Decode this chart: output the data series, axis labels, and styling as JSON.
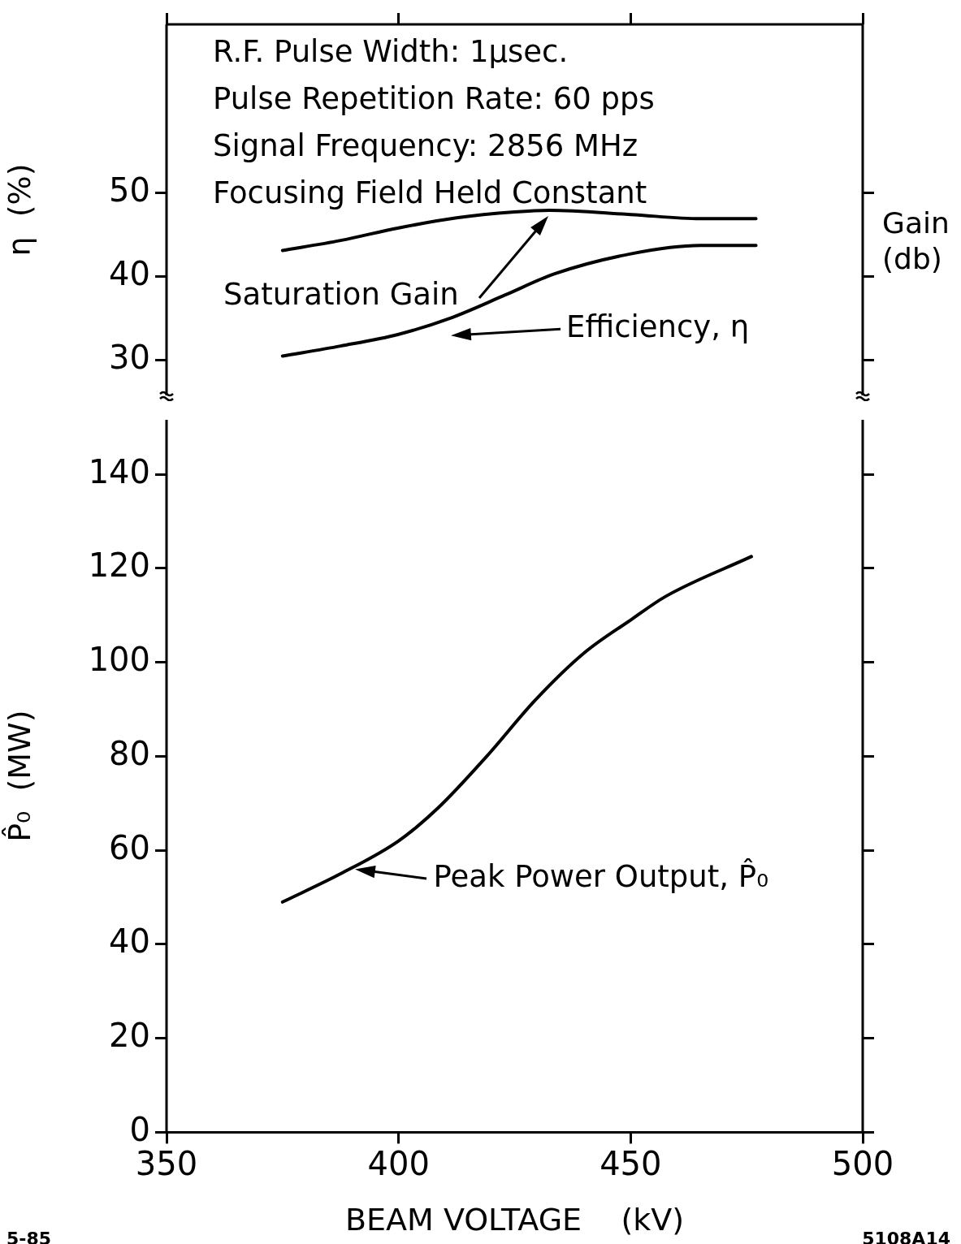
{
  "chart_data": [
    {
      "type": "line",
      "ylabel": "η  (%)",
      "y2label": "Gain (db)",
      "xlim": [
        350,
        500
      ],
      "xticks": [
        350,
        400,
        450,
        500
      ],
      "tick_labels": "y",
      "ylim": [
        25.8,
        70.1
      ],
      "yticks": [
        30,
        40,
        50
      ],
      "marker": "none",
      "line_style": "solid",
      "legend": false,
      "grid": false,
      "series": [
        {
          "color": "#000000",
          "x": [
            375,
            387.5,
            400,
            412.5,
            425,
            432.5,
            450,
            465,
            477
          ],
          "values": [
            43.1,
            44.3,
            45.8,
            47.0,
            47.7,
            47.9,
            47.4,
            46.9,
            46.9
          ]
        },
        {
          "color": "#000000",
          "x": [
            375,
            387.5,
            400,
            411,
            423,
            433.5,
            450,
            465,
            477
          ],
          "values": [
            30.5,
            31.7,
            33.1,
            35.0,
            37.8,
            40.3,
            42.7,
            43.7,
            43.7
          ]
        }
      ],
      "annotations": [
        "R.F. Pulse Width: 1μsec.",
        "Pulse Repetition Rate: 60 pps",
        "Signal Frequency: 2856 MHz",
        "Focusing Field Held Constant",
        "Saturation Gain",
        "Efficiency, η"
      ]
    },
    {
      "type": "line",
      "xlabel": "BEAM VOLTAGE    (kV)",
      "ylabel": "P̂₀  (MW)",
      "xlim": [
        350,
        500
      ],
      "xticks": [
        350,
        400,
        450,
        500
      ],
      "ylim": [
        0,
        151.6
      ],
      "yticks": [
        0,
        20,
        40,
        60,
        80,
        100,
        120,
        140
      ],
      "marker": "none",
      "line_style": "solid",
      "legend": false,
      "grid": false,
      "series": [
        {
          "color": "#000000",
          "x": [
            375,
            387.5,
            400,
            408.5,
            419,
            429.5,
            440,
            450,
            457.5,
            476
          ],
          "values": [
            49.0,
            55.0,
            62.0,
            69.0,
            80.0,
            92.0,
            102.0,
            109.0,
            114.0,
            122.5
          ]
        }
      ],
      "annotations": [
        {
          "text": "Peak Power Output, P̂₀",
          "x": 390,
          "y": 56
        },
        "5-85",
        "5108A14"
      ]
    }
  ]
}
